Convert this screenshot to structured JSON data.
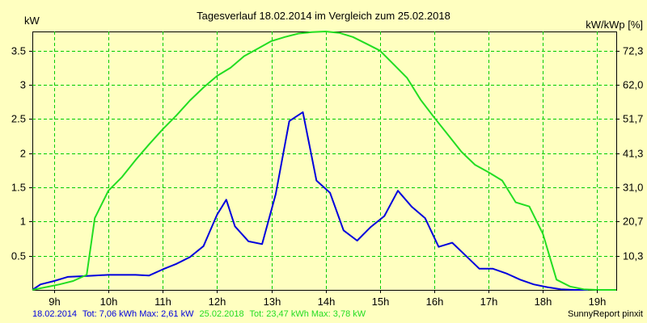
{
  "chart_data": {
    "type": "line",
    "title": "Tagesverlauf 18.02.2014 im Vergleich zum 25.02.2018",
    "ylabel_left": "kW",
    "ylabel_right": "kW/kWp [%]",
    "xlim": [
      8.6,
      19.35
    ],
    "ylim": [
      0,
      3.78
    ],
    "x_ticks": [
      9,
      10,
      11,
      12,
      13,
      14,
      15,
      16,
      17,
      18,
      19
    ],
    "x_tick_labels": [
      "9h",
      "10h",
      "11h",
      "12h",
      "13h",
      "14h",
      "15h",
      "16h",
      "17h",
      "18h",
      "19h"
    ],
    "y_ticks": [
      0.5,
      1,
      1.5,
      2,
      2.5,
      3,
      3.5
    ],
    "y_tick_labels": [
      "0.5",
      "1",
      "1.5",
      "2",
      "2.5",
      "3",
      "3.5"
    ],
    "y2_ticks": [
      0.5,
      1,
      1.5,
      2,
      2.5,
      3,
      3.5
    ],
    "y2_tick_labels": [
      "10,3",
      "20,7",
      "31,0",
      "41,3",
      "51,7",
      "62,0",
      "72,3"
    ],
    "grid": true,
    "series": [
      {
        "name": "18.02.2014",
        "color": "#0000dd",
        "x": [
          8.6,
          8.75,
          9.0,
          9.25,
          9.5,
          9.75,
          10.0,
          10.25,
          10.5,
          10.75,
          11.0,
          11.25,
          11.5,
          11.75,
          12.0,
          12.17,
          12.33,
          12.58,
          12.83,
          13.08,
          13.33,
          13.58,
          13.83,
          14.08,
          14.33,
          14.58,
          14.83,
          15.08,
          15.33,
          15.58,
          15.83,
          16.08,
          16.33,
          16.58,
          16.83,
          17.08,
          17.33,
          17.58,
          17.83,
          18.08,
          18.33,
          18.58,
          18.83
        ],
        "y": [
          0.0,
          0.08,
          0.13,
          0.19,
          0.2,
          0.21,
          0.22,
          0.22,
          0.22,
          0.21,
          0.3,
          0.38,
          0.48,
          0.64,
          1.1,
          1.32,
          0.93,
          0.71,
          0.67,
          1.4,
          2.47,
          2.6,
          1.6,
          1.42,
          0.87,
          0.72,
          0.92,
          1.08,
          1.45,
          1.22,
          1.05,
          0.63,
          0.69,
          0.5,
          0.31,
          0.31,
          0.24,
          0.15,
          0.08,
          0.04,
          0.01,
          0.0,
          0.0
        ]
      },
      {
        "name": "25.02.2018",
        "color": "#22dd22",
        "x": [
          8.6,
          8.85,
          9.1,
          9.35,
          9.6,
          9.75,
          10.0,
          10.25,
          10.5,
          10.75,
          11.0,
          11.25,
          11.5,
          11.75,
          12.0,
          12.25,
          12.5,
          12.75,
          13.0,
          13.25,
          13.5,
          13.75,
          14.0,
          14.25,
          14.5,
          14.75,
          15.0,
          15.25,
          15.5,
          15.75,
          16.0,
          16.25,
          16.5,
          16.75,
          17.0,
          17.25,
          17.5,
          17.75,
          18.0,
          18.25,
          18.5,
          18.75,
          19.0,
          19.35
        ],
        "y": [
          0.0,
          0.04,
          0.08,
          0.13,
          0.22,
          1.05,
          1.45,
          1.65,
          1.9,
          2.13,
          2.35,
          2.55,
          2.77,
          2.96,
          3.13,
          3.25,
          3.42,
          3.53,
          3.64,
          3.7,
          3.75,
          3.77,
          3.78,
          3.76,
          3.7,
          3.6,
          3.5,
          3.3,
          3.1,
          2.78,
          2.52,
          2.27,
          2.02,
          1.83,
          1.72,
          1.6,
          1.28,
          1.22,
          0.82,
          0.15,
          0.05,
          0.01,
          0.0,
          0.0
        ]
      }
    ],
    "footer": {
      "series1_label": "18.02.2014",
      "series1_stats": "Tot: 7,06 kWh Max: 2,61 kW",
      "series2_label": "25.02.2018",
      "series2_stats": "Tot: 23,47 kWh Max: 3,78 kW",
      "credit": "SunnyReport pinxit"
    }
  }
}
